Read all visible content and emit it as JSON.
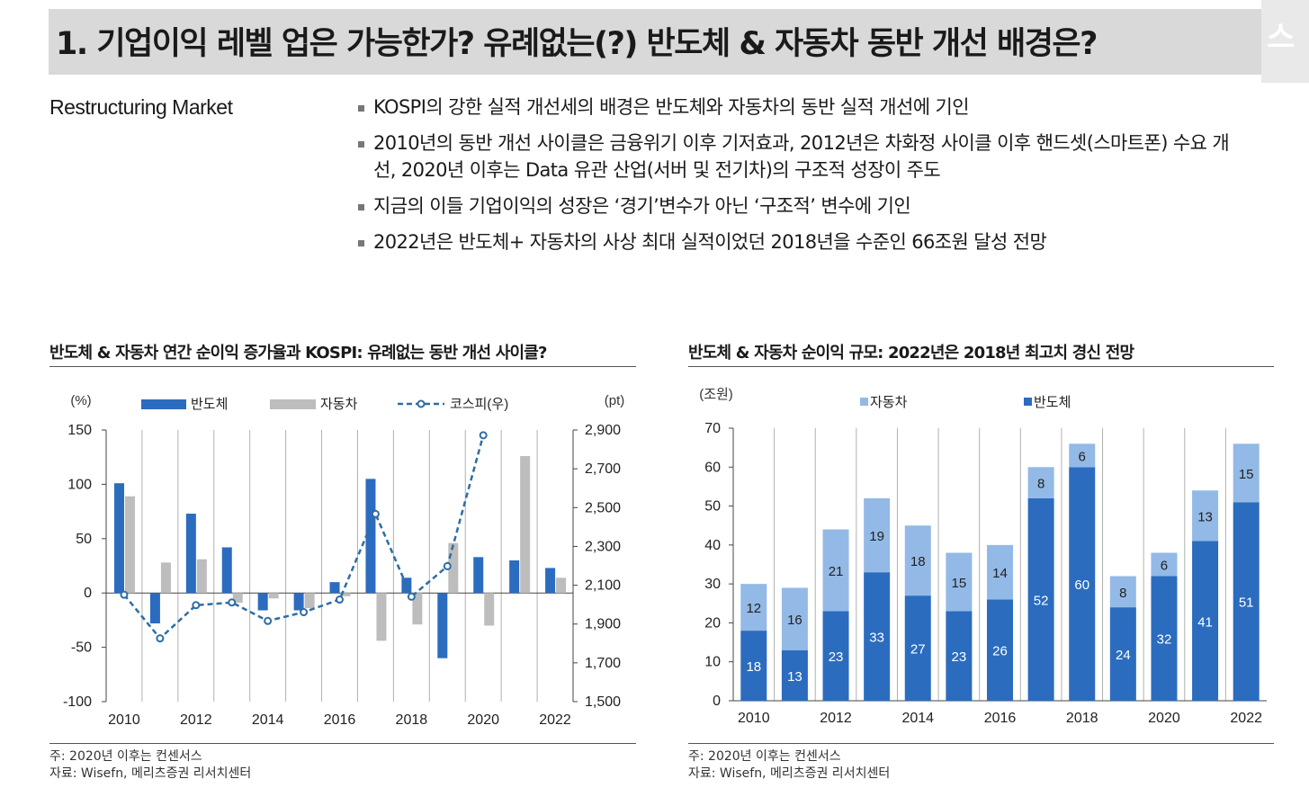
{
  "header": {
    "title": "1. 기업이익 레벨 업은 가능한가? 유례없는(?) 반도체 & 자동차 동반 개선 배경은?"
  },
  "subtitle": "Restructuring Market",
  "bullets": [
    "KOSPI의 강한 실적 개선세의 배경은 반도체와 자동차의 동반 실적 개선에 기인",
    "2010년의 동반 개선 사이클은 금융위기 이후 기저효과, 2012년은 차화정 사이클 이후 핸드셋(스마트폰) 수요 개선, 2020년 이후는 Data 유관 산업(서버 및 전기차)의 구조적 성장이 주도",
    "지금의 이들 기업이익의 성장은 ‘경기’변수가 아닌 ‘구조적’ 변수에 기인",
    "2022년은 반도체+ 자동차의 사상 최대 실적이었던 2018년을 수준인 66조원 달성 전망"
  ],
  "chart_data": [
    {
      "type": "bar",
      "title": "반도체 & 자동차 연간 순이익 증가율과 KOSPI: 유례없는 동반 개선 사이클?",
      "ylabel": "(%)",
      "y2label": "(pt)",
      "categories": [
        "2010",
        "2011",
        "2012",
        "2013",
        "2014",
        "2015",
        "2016",
        "2017",
        "2018",
        "2019",
        "2020",
        "2021",
        "2022"
      ],
      "x_tick_labels": [
        "2010",
        "2012",
        "2014",
        "2016",
        "2018",
        "2020",
        "2022"
      ],
      "ylim": [
        -100,
        150
      ],
      "y_ticks": [
        "150",
        "100",
        "50",
        "0",
        "-50",
        "-100"
      ],
      "y2lim": [
        1500,
        2900
      ],
      "y2_ticks": [
        "2,900",
        "2,700",
        "2,500",
        "2,300",
        "2,100",
        "1,900",
        "1,700",
        "1,500"
      ],
      "series": [
        {
          "name": "반도체",
          "type": "bar",
          "color": "#2b6cbf",
          "values": [
            101,
            -28,
            73,
            42,
            -16,
            -16,
            10,
            105,
            14,
            -60,
            33,
            30,
            23
          ]
        },
        {
          "name": "자동차",
          "type": "bar",
          "color": "#bdbdbd",
          "values": [
            89,
            28,
            31,
            -9,
            -5,
            -14,
            -3,
            -44,
            -29,
            46,
            -30,
            126,
            14
          ]
        },
        {
          "name": "코스피(우)",
          "type": "line",
          "axis": "right",
          "color": "#2e6da4",
          "values": [
            2051,
            1826,
            1997,
            2011,
            1916,
            1961,
            2026,
            2467,
            2041,
            2198,
            2873,
            null,
            null
          ]
        }
      ],
      "legend_position": "top",
      "grid": "vertical",
      "notes": [
        "주: 2020년 이후는 컨센서스",
        "자료: Wisefn, 메리츠증권 리서치센터"
      ]
    },
    {
      "type": "bar",
      "stacked": true,
      "title": "반도체 & 자동차 순이익 규모: 2022년은 2018년 최고치 경신 전망",
      "ylabel": "(조원)",
      "categories": [
        "2010",
        "2011",
        "2012",
        "2013",
        "2014",
        "2015",
        "2016",
        "2017",
        "2018",
        "2019",
        "2020",
        "2021",
        "2022"
      ],
      "x_tick_labels": [
        "2010",
        "2012",
        "2014",
        "2016",
        "2018",
        "2020",
        "2022"
      ],
      "ylim": [
        0,
        70
      ],
      "y_ticks": [
        "70",
        "60",
        "50",
        "40",
        "30",
        "20",
        "10",
        "0"
      ],
      "series": [
        {
          "name": "반도체",
          "color": "#2b6cbf",
          "values": [
            18,
            13,
            23,
            33,
            27,
            23,
            26,
            52,
            60,
            24,
            32,
            41,
            51
          ]
        },
        {
          "name": "자동차",
          "color": "#93b9e6",
          "values": [
            12,
            16,
            21,
            19,
            18,
            15,
            14,
            8,
            6,
            8,
            6,
            13,
            15
          ]
        }
      ],
      "legend_position": "top",
      "grid": "vertical",
      "notes": [
        "주: 2020년 이후는 컨센서스",
        "자료: Wisefn, 메리츠증권 리서치센터"
      ]
    }
  ]
}
